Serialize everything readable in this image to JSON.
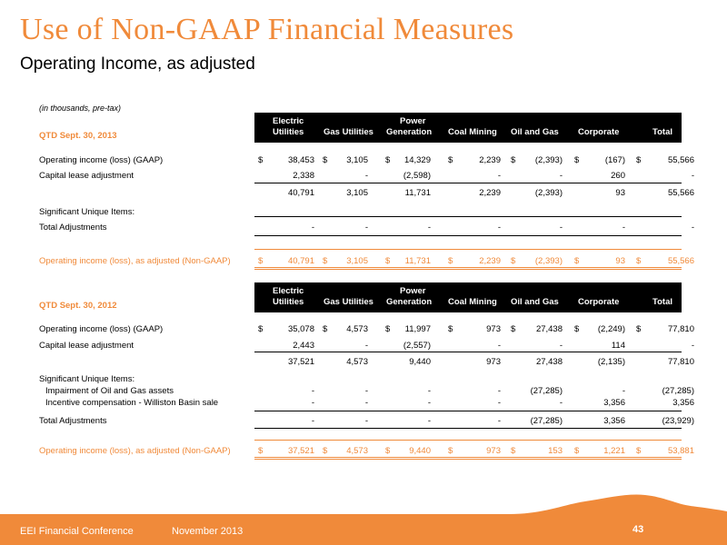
{
  "title": "Use of Non-GAAP Financial Measures",
  "subtitle": "Operating Income, as adjusted",
  "note": "(in thousands, pre-tax)",
  "columns": {
    "electric_1": "Electric",
    "electric_2": "Utilities",
    "gas": "Gas Utilities",
    "power_1": "Power",
    "power_2": "Generation",
    "coal": "Coal Mining",
    "oil": "Oil and Gas",
    "corporate": "Corporate",
    "total": "Total"
  },
  "table_2013": {
    "period": "QTD Sept. 30, 2013",
    "gaap": {
      "label": "Operating income (loss) (GAAP)",
      "values": [
        "38,453",
        "3,105",
        "14,329",
        "2,239",
        "(2,393)",
        "(167)",
        "55,566"
      ]
    },
    "cap_lease": {
      "label": "Capital lease adjustment",
      "values": [
        "2,338",
        "-",
        "(2,598)",
        "-",
        "-",
        "260",
        "-"
      ]
    },
    "subtotal": {
      "values": [
        "40,791",
        "3,105",
        "11,731",
        "2,239",
        "(2,393)",
        "93",
        "55,566"
      ]
    },
    "significant_label": "Significant Unique Items:",
    "total_adj": {
      "label": "Total Adjustments",
      "values": [
        "-",
        "-",
        "-",
        "-",
        "-",
        "-",
        "-"
      ]
    },
    "adjusted": {
      "label": "Operating income (loss), as adjusted (Non-GAAP)",
      "values": [
        "40,791",
        "3,105",
        "11,731",
        "2,239",
        "(2,393)",
        "93",
        "55,566"
      ]
    }
  },
  "table_2012": {
    "period": "QTD Sept. 30, 2012",
    "gaap": {
      "label": "Operating income (loss) (GAAP)",
      "values": [
        "35,078",
        "4,573",
        "11,997",
        "973",
        "27,438",
        "(2,249)",
        "77,810"
      ]
    },
    "cap_lease": {
      "label": "Capital lease adjustment",
      "values": [
        "2,443",
        "-",
        "(2,557)",
        "-",
        "-",
        "114",
        "-"
      ]
    },
    "subtotal": {
      "values": [
        "37,521",
        "4,573",
        "9,440",
        "973",
        "27,438",
        "(2,135)",
        "77,810"
      ]
    },
    "significant_label": "Significant Unique Items:",
    "impairment": {
      "label": "Impairment of Oil and Gas assets",
      "values": [
        "-",
        "-",
        "-",
        "-",
        "(27,285)",
        "-",
        "(27,285)"
      ]
    },
    "incentive": {
      "label": "Incentive compensation - Williston Basin sale",
      "values": [
        "-",
        "-",
        "-",
        "-",
        "-",
        "3,356",
        "3,356"
      ]
    },
    "total_adj": {
      "label": "Total Adjustments",
      "values": [
        "-",
        "-",
        "-",
        "-",
        "(27,285)",
        "3,356",
        "(23,929)"
      ]
    },
    "adjusted": {
      "label": "Operating income (loss), as adjusted (Non-GAAP)",
      "values": [
        "37,521",
        "4,573",
        "9,440",
        "973",
        "153",
        "1,221",
        "53,881"
      ]
    }
  },
  "currency_symbol": "$",
  "footer": {
    "conference": "EEI Financial Conference",
    "date": "November 2013",
    "page": "43"
  }
}
